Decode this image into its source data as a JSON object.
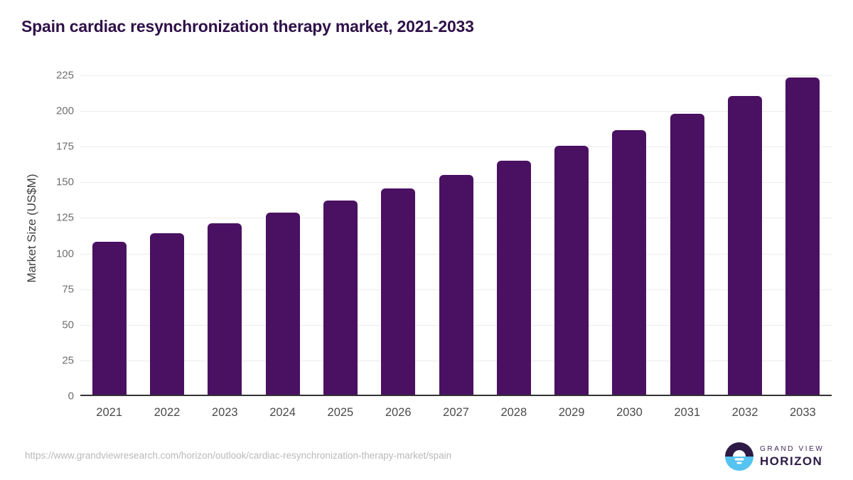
{
  "title": "Spain cardiac resynchronization therapy market, 2021-2033",
  "chart_data": {
    "type": "bar",
    "title": "Spain cardiac resynchronization therapy market, 2021-2033",
    "categories": [
      "2021",
      "2022",
      "2023",
      "2024",
      "2025",
      "2026",
      "2027",
      "2028",
      "2029",
      "2030",
      "2031",
      "2032",
      "2033"
    ],
    "values": [
      107.5,
      113.5,
      120,
      127.5,
      136,
      144.5,
      154,
      164,
      174.5,
      185.5,
      197,
      209.5,
      222.5
    ],
    "xlabel": "",
    "ylabel": "Market Size (US$M)",
    "ylim": [
      0,
      225
    ],
    "ytick_step": 25,
    "yticks": [
      0,
      25,
      50,
      75,
      100,
      125,
      150,
      175,
      200,
      225
    ],
    "grid": true,
    "legend": false
  },
  "footer": {
    "source_url": "https://www.grandviewresearch.com/horizon/outlook/cardiac-resynchronization-therapy-market/spain",
    "logo": {
      "brand_top": "GRAND VIEW",
      "brand_bottom": "HORIZON"
    }
  },
  "colors": {
    "bar": "#4a1061",
    "title": "#2f1048",
    "gridline": "#ececec",
    "axis_line": "#333333",
    "y_tick_text": "#6e6e6e",
    "x_tick_text": "#4b4b4b",
    "axis_title_text": "#3f3f3f",
    "url_text": "#b9b9b9",
    "logo_purple": "#2d1b45",
    "logo_blue": "#56c3f0"
  }
}
